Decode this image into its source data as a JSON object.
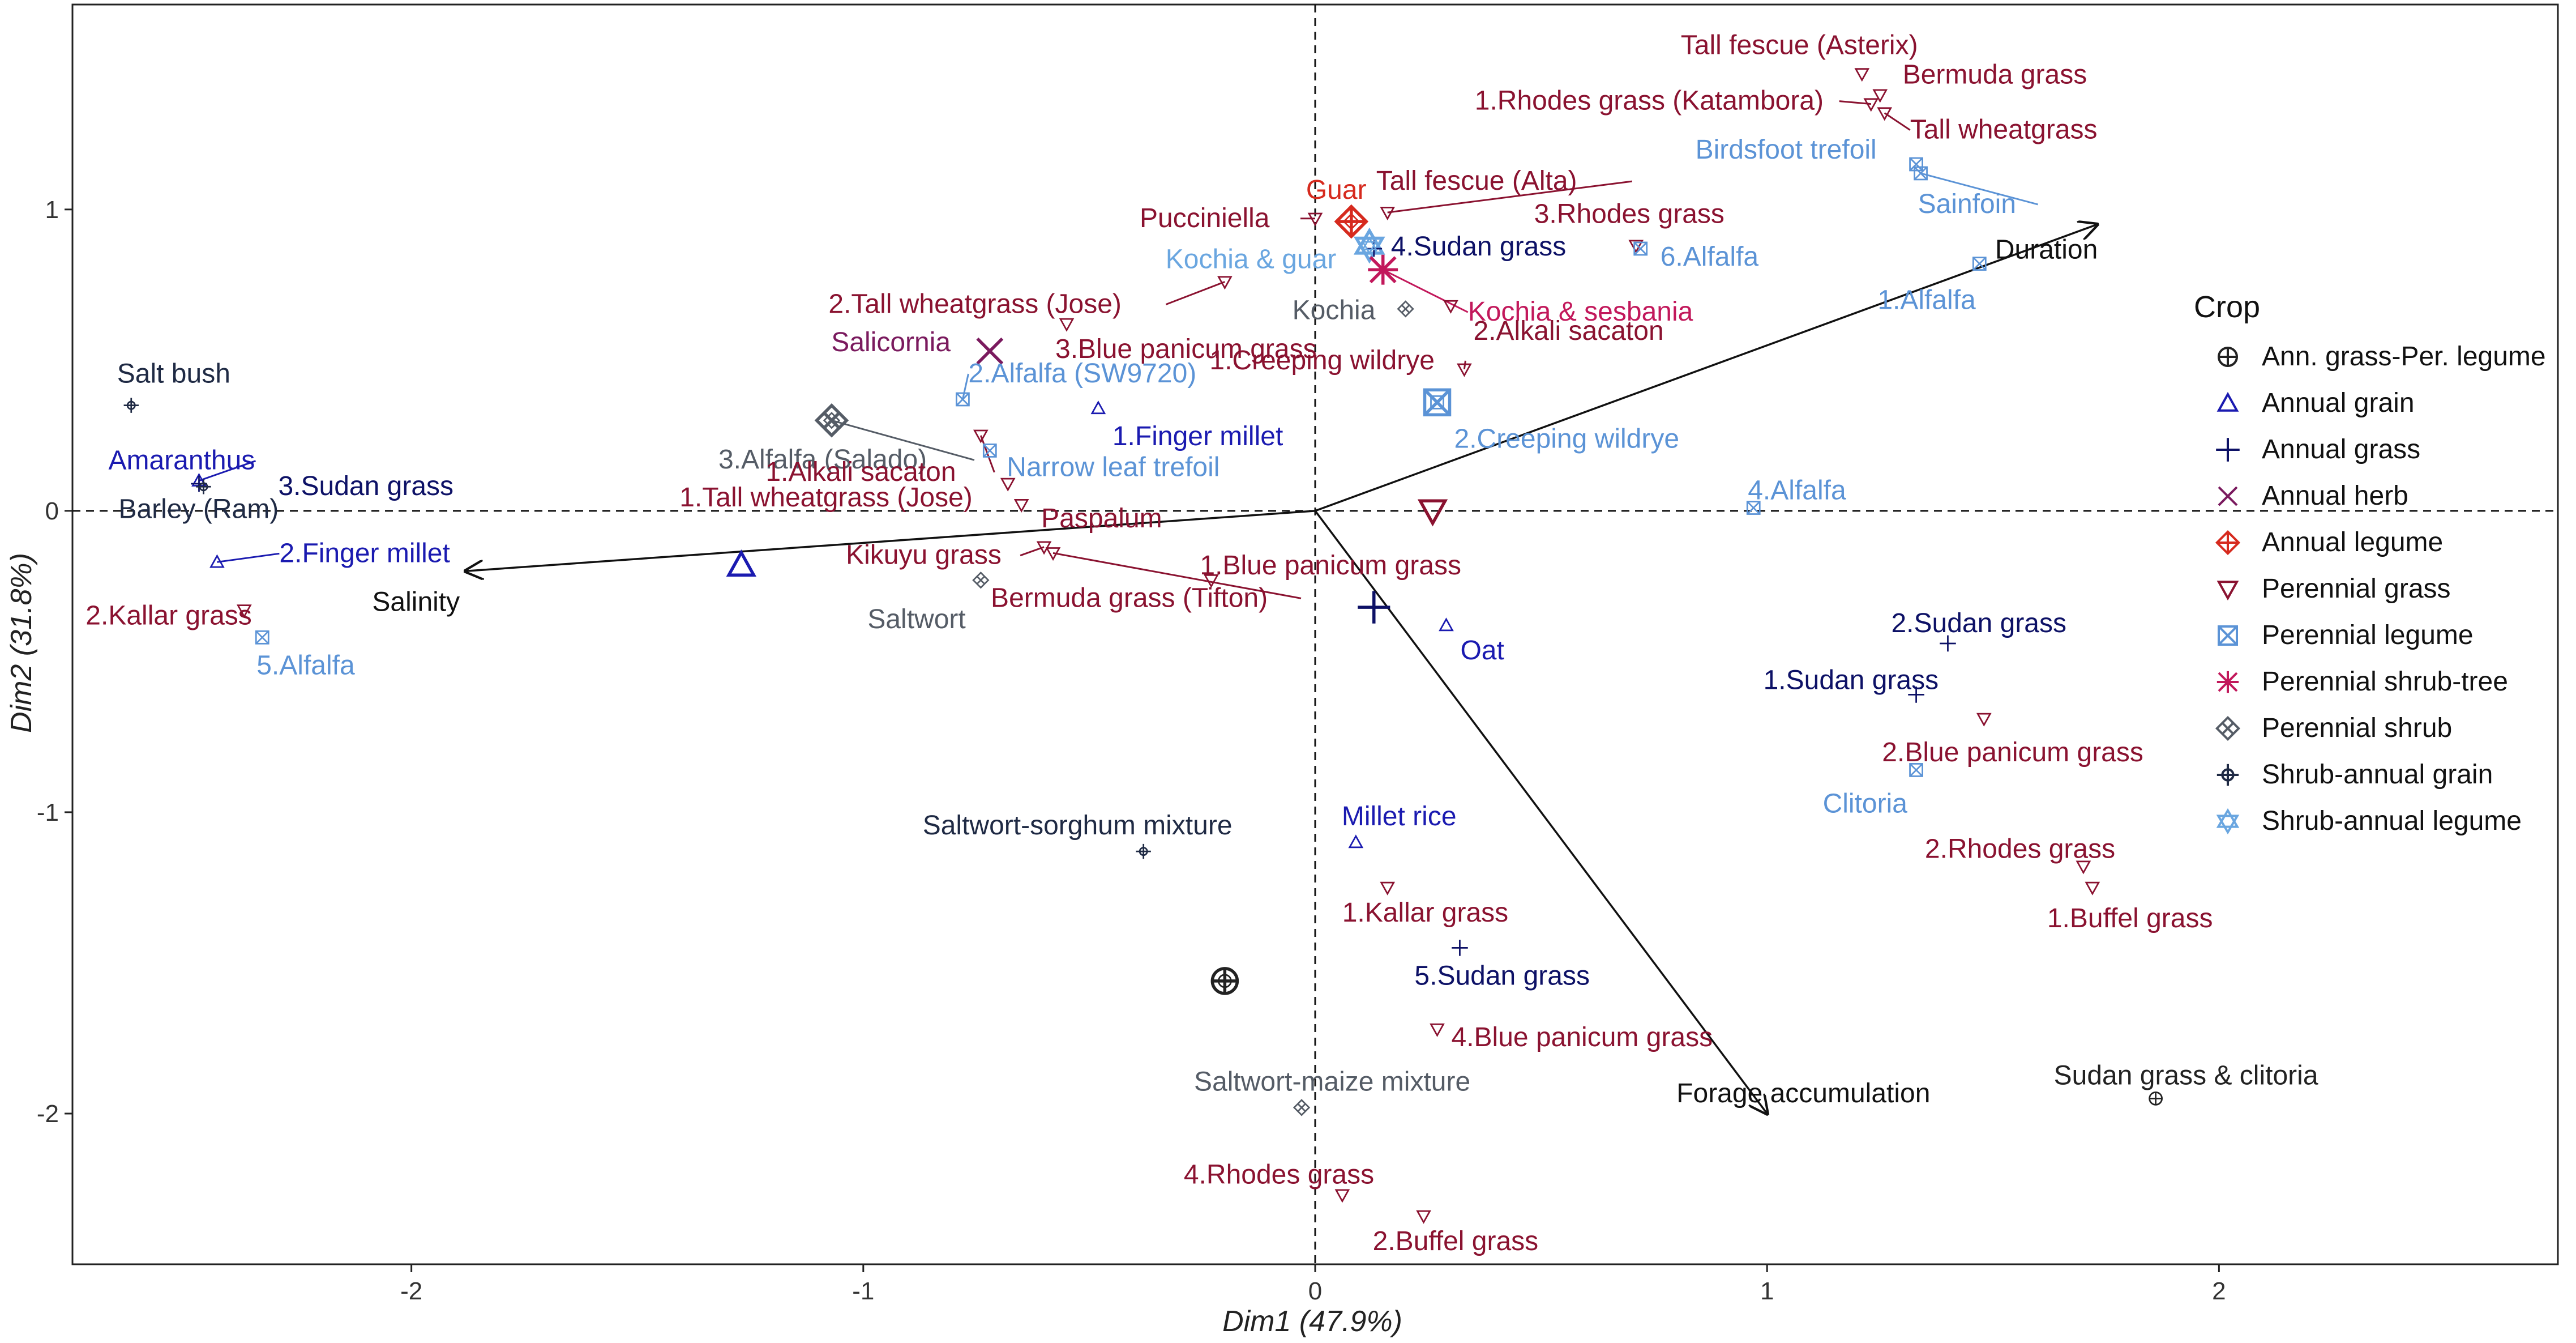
{
  "chart_data": {
    "type": "scatter",
    "subtype": "pca-biplot",
    "xlabel": "Dim1 (47.9%)",
    "ylabel": "Dim2 (31.8%)",
    "xlim": [
      -2.75,
      2.75
    ],
    "ylim": [
      -2.5,
      1.68
    ],
    "xticks": [
      -2,
      -1,
      0,
      1,
      2
    ],
    "yticks": [
      -2,
      -1,
      0,
      1
    ],
    "grid": false,
    "reference_lines": [
      "x=0 dashed",
      "y=0 dashed"
    ],
    "legend": {
      "title": "Crop",
      "position": "right"
    },
    "groups": [
      {
        "name": "Ann. grass-Per. legume",
        "color": "#222222",
        "marker": "circle-plus"
      },
      {
        "name": "Annual grain",
        "color": "#1a1ab0",
        "marker": "triangle"
      },
      {
        "name": "Annual grass",
        "color": "#0d1166",
        "marker": "plus"
      },
      {
        "name": "Annual herb",
        "color": "#7a1a5e",
        "marker": "x"
      },
      {
        "name": "Annual legume",
        "color": "#d62a1e",
        "marker": "diamond-plus"
      },
      {
        "name": "Perennial grass",
        "color": "#8a1230",
        "marker": "triangle-down"
      },
      {
        "name": "Perennial legume",
        "color": "#5b93d6",
        "marker": "square-x"
      },
      {
        "name": "Perennial shrub-tree",
        "color": "#c2185b",
        "marker": "asterisk"
      },
      {
        "name": "Perennial shrub",
        "color": "#555c66",
        "marker": "diamond-cross"
      },
      {
        "name": "Shrub-annual grain",
        "color": "#1f2a44",
        "marker": "cross-star"
      },
      {
        "name": "Shrub-annual legume",
        "color": "#6aa6e0",
        "marker": "star-david"
      }
    ],
    "points": [
      {
        "label": "Tall fescue (Asterix)",
        "group": "Perennial grass",
        "x": 1.21,
        "y": 1.45
      },
      {
        "label": "Bermuda grass",
        "group": "Perennial grass",
        "x": 1.25,
        "y": 1.38
      },
      {
        "label": "1.Rhodes grass (Katambora)",
        "group": "Perennial grass",
        "x": 1.23,
        "y": 1.35
      },
      {
        "label": "Tall wheatgrass",
        "group": "Perennial grass",
        "x": 1.26,
        "y": 1.32
      },
      {
        "label": "Birdsfoot trefoil",
        "group": "Perennial legume",
        "x": 1.33,
        "y": 1.15
      },
      {
        "label": "Sainfoin",
        "group": "Perennial legume",
        "x": 1.34,
        "y": 1.12
      },
      {
        "label": "Tall fescue (Alta)",
        "group": "Perennial grass",
        "x": 0.16,
        "y": 0.99
      },
      {
        "label": "Guar",
        "group": "Annual legume",
        "x": 0.08,
        "y": 0.96
      },
      {
        "label": "Pucciniella",
        "group": "Perennial grass",
        "x": 0.0,
        "y": 0.97
      },
      {
        "label": "3.Rhodes grass",
        "group": "Perennial grass",
        "x": 0.71,
        "y": 0.88
      },
      {
        "label": "6.Alfalfa",
        "group": "Perennial legume",
        "x": 0.72,
        "y": 0.87
      },
      {
        "label": "4.Sudan grass",
        "group": "Annual grass",
        "x": 0.13,
        "y": 0.87
      },
      {
        "label": "Kochia & guar",
        "group": "Shrub-annual legume",
        "x": 0.12,
        "y": 0.88
      },
      {
        "label": "Kochia & sesbania",
        "group": "Perennial shrub-tree",
        "x": 0.15,
        "y": 0.8
      },
      {
        "label": "2.Tall wheatgrass (Jose)",
        "group": "Perennial grass",
        "x": -0.2,
        "y": 0.76
      },
      {
        "label": "Kochia",
        "group": "Perennial shrub",
        "x": 0.2,
        "y": 0.67
      },
      {
        "label": "1.Alfalfa",
        "group": "Perennial legume",
        "x": 1.47,
        "y": 0.82
      },
      {
        "label": "2.Alkali sacaton",
        "group": "Perennial grass",
        "x": 0.3,
        "y": 0.68
      },
      {
        "label": "Salicornia",
        "group": "Annual herb",
        "x": -0.72,
        "y": 0.53
      },
      {
        "label": "3.Blue panicum grass",
        "group": "Perennial grass",
        "x": -0.55,
        "y": 0.62
      },
      {
        "label": "1.Creeping wildrye",
        "group": "Perennial grass",
        "x": 0.33,
        "y": 0.47
      },
      {
        "label": "2.Creeping wildrye",
        "group": "Perennial legume",
        "x": 0.27,
        "y": 0.36
      },
      {
        "label": "Salt bush",
        "group": "Shrub-annual grain",
        "x": -2.62,
        "y": 0.35
      },
      {
        "label": "2.Alfalfa (SW9720)",
        "group": "Perennial legume",
        "x": -0.78,
        "y": 0.37
      },
      {
        "label": "3.Alfalfa (Salado)",
        "group": "Perennial shrub",
        "x": -1.07,
        "y": 0.3
      },
      {
        "label": "1.Finger millet",
        "group": "Annual grain",
        "x": -0.48,
        "y": 0.34
      },
      {
        "label": "1.Alkali sacaton",
        "group": "Perennial grass",
        "x": -0.74,
        "y": 0.25
      },
      {
        "label": "Narrow leaf trefoil",
        "group": "Perennial legume",
        "x": -0.72,
        "y": 0.2
      },
      {
        "label": "Amaranthus",
        "group": "Annual grain",
        "x": -2.47,
        "y": 0.1
      },
      {
        "label": "3.Sudan grass",
        "group": "Annual grass",
        "x": -2.47,
        "y": 0.09
      },
      {
        "label": "Barley (Ram)",
        "group": "Shrub-annual grain",
        "x": -2.46,
        "y": 0.08
      },
      {
        "label": "1.Tall wheatgrass (Jose)",
        "group": "Perennial grass",
        "x": -0.68,
        "y": 0.09
      },
      {
        "label": "Paspalum",
        "group": "Perennial grass",
        "x": -0.65,
        "y": 0.02
      },
      {
        "label": "Kikuyu grass",
        "group": "Perennial grass",
        "x": -0.6,
        "y": -0.12
      },
      {
        "label": "Bermuda grass (Tifton)",
        "group": "Perennial grass",
        "x": -0.58,
        "y": -0.14
      },
      {
        "label": "Saltwort",
        "group": "Perennial shrub",
        "x": -0.74,
        "y": -0.23
      },
      {
        "label": "1.Blue panicum grass",
        "group": "Perennial grass",
        "x": -0.23,
        "y": -0.23
      },
      {
        "label": "2.Finger millet",
        "group": "Annual grain",
        "x": -2.43,
        "y": -0.17
      },
      {
        "label": "2.Kallar grass",
        "group": "Perennial grass",
        "x": -2.37,
        "y": -0.33
      },
      {
        "label": "5.Alfalfa",
        "group": "Perennial legume",
        "x": -2.33,
        "y": -0.42
      },
      {
        "label": "4.Alfalfa",
        "group": "Perennial legume",
        "x": 0.97,
        "y": 0.01
      },
      {
        "label": "Oat",
        "group": "Annual grain",
        "x": 0.29,
        "y": -0.38
      },
      {
        "label": "2.Sudan grass",
        "group": "Annual grass",
        "x": 1.4,
        "y": -0.44
      },
      {
        "label": "1.Sudan grass",
        "group": "Annual grass",
        "x": 1.33,
        "y": -0.61
      },
      {
        "label": "2.Blue panicum grass",
        "group": "Perennial grass",
        "x": 1.48,
        "y": -0.69
      },
      {
        "label": "Clitoria",
        "group": "Perennial legume",
        "x": 1.33,
        "y": -0.86
      },
      {
        "label": "2.Rhodes grass",
        "group": "Perennial grass",
        "x": 1.7,
        "y": -1.18
      },
      {
        "label": "1.Buffel grass",
        "group": "Perennial grass",
        "x": 1.72,
        "y": -1.25
      },
      {
        "label": "Saltwort-sorghum mixture",
        "group": "Shrub-annual grain",
        "x": -0.38,
        "y": -1.13
      },
      {
        "label": "Millet rice",
        "group": "Annual grain",
        "x": 0.09,
        "y": -1.1
      },
      {
        "label": "1.Kallar grass",
        "group": "Perennial grass",
        "x": 0.16,
        "y": -1.25
      },
      {
        "label": "5.Sudan grass",
        "group": "Annual grass",
        "x": 0.32,
        "y": -1.45
      },
      {
        "label": "",
        "group": "Ann. grass-Per. legume",
        "x": -0.2,
        "y": -1.56
      },
      {
        "label": "4.Blue panicum grass",
        "group": "Perennial grass",
        "x": 0.27,
        "y": -1.72
      },
      {
        "label": "Saltwort-maize mixture",
        "group": "Perennial shrub",
        "x": -0.03,
        "y": -1.98
      },
      {
        "label": "Sudan grass & clitoria",
        "group": "Ann. grass-Per. legume",
        "x": 1.86,
        "y": -1.95
      },
      {
        "label": "4.Rhodes grass",
        "group": "Perennial grass",
        "x": 0.06,
        "y": -2.27
      },
      {
        "label": "2.Buffel grass",
        "group": "Perennial grass",
        "x": 0.24,
        "y": -2.34
      }
    ],
    "centroids": [
      {
        "group": "Annual grain",
        "x": -1.27,
        "y": -0.18
      },
      {
        "group": "Perennial grass",
        "x": 0.26,
        "y": 0.0
      },
      {
        "group": "Annual grass",
        "x": 0.13,
        "y": -0.32
      },
      {
        "group": "Perennial legume",
        "x": 0.27,
        "y": 0.36
      },
      {
        "group": "Annual legume",
        "x": 0.08,
        "y": 0.96
      },
      {
        "group": "Annual herb",
        "x": -0.72,
        "y": 0.53
      },
      {
        "group": "Perennial shrub",
        "x": -1.07,
        "y": 0.3
      },
      {
        "group": "Shrub-annual legume",
        "x": 0.12,
        "y": 0.88
      },
      {
        "group": "Perennial shrub-tree",
        "x": 0.15,
        "y": 0.8
      },
      {
        "group": "Ann. grass-Per. legume",
        "x": -0.2,
        "y": -1.56
      }
    ],
    "vectors": [
      {
        "label": "Duration",
        "x": 1.73,
        "y": 0.95
      },
      {
        "label": "Salinity",
        "x": -1.88,
        "y": -0.2
      },
      {
        "label": "Forage accumulation",
        "x": 1.0,
        "y": -2.0
      }
    ]
  }
}
